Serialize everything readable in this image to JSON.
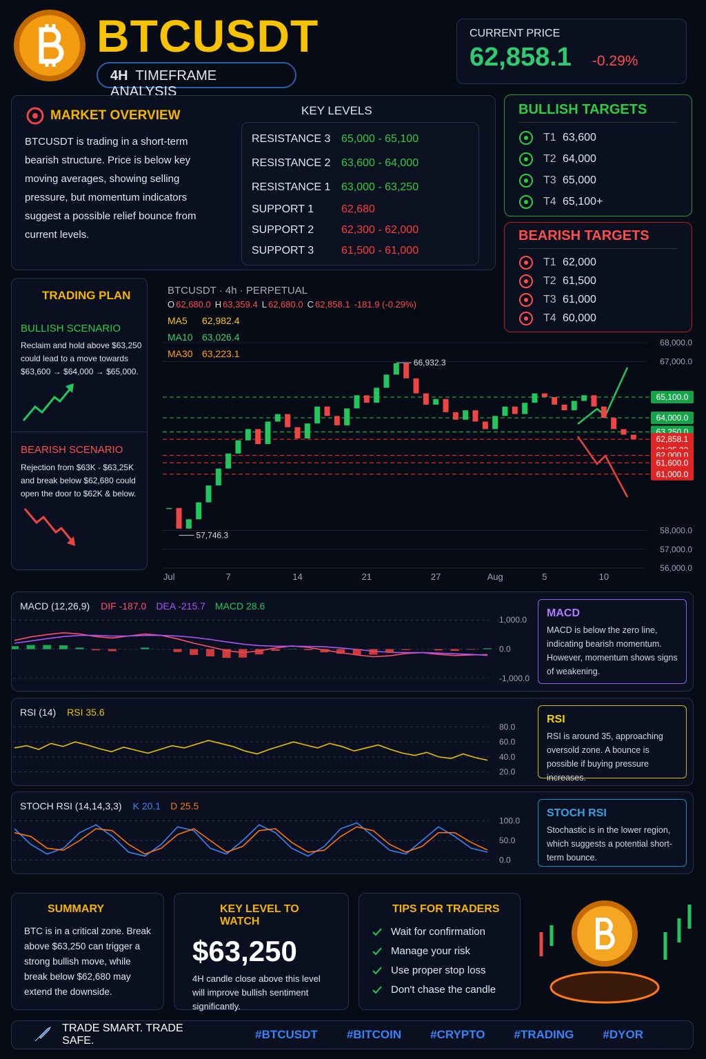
{
  "header": {
    "title": "BTCUSDT",
    "timeframe_num": "4H",
    "timeframe": "TIMEFRAME ANALYSIS"
  },
  "current_price": {
    "label": "CURRENT PRICE",
    "price": "62,858.1",
    "change": "-0.29%"
  },
  "market_overview": {
    "title": "MARKET OVERVIEW",
    "text": "BTCUSDT is trading in a short-term bearish structure. Price is below key moving averages, showing selling pressure, but momentum indicators suggest a possible relief bounce from current levels."
  },
  "key_levels": {
    "title": "KEY LEVELS",
    "rows": [
      [
        "RESISTANCE 3",
        "65,000 - 65,100"
      ],
      [
        "RESISTANCE 2",
        "63,600 - 64,000"
      ],
      [
        "RESISTANCE 1",
        "63,000 - 63,250"
      ],
      [
        "SUPPORT 1",
        "62,680"
      ],
      [
        "SUPPORT 2",
        "62,300 - 62,000"
      ],
      [
        "SUPPORT 3",
        "61,500 - 61,000"
      ]
    ]
  },
  "bullish_targets": {
    "title": "BULLISH TARGETS",
    "items": [
      [
        "T1",
        "63,600"
      ],
      [
        "T2",
        "64,000"
      ],
      [
        "T3",
        "65,000"
      ],
      [
        "T4",
        "65,100+"
      ]
    ]
  },
  "bearish_targets": {
    "title": "BEARISH TARGETS",
    "items": [
      [
        "T1",
        "62,000"
      ],
      [
        "T2",
        "61,500"
      ],
      [
        "T3",
        "61,000"
      ],
      [
        "T4",
        "60,000"
      ]
    ]
  },
  "trading_plan": {
    "title": "TRADING PLAN",
    "bullish": {
      "title": "BULLISH SCENARIO",
      "text": "Reclaim and hold above $63,250 could lead to a move towards $63,600 → $64,000 → $65,000."
    },
    "bearish": {
      "title": "BEARISH SCENARIO",
      "text": "Rejection from $63K - $63,25K and break below $62,680 could open the door to $62K & below."
    }
  },
  "chart_data": {
    "type": "candlestick",
    "symbol": "BTCUSDT · 4h · PERPETUAL",
    "ohlc": [
      [
        "O",
        "62,680.0"
      ],
      [
        "H",
        "63,359.4"
      ],
      [
        "L",
        "62,680.0"
      ],
      [
        "C",
        "62,858.1"
      ]
    ],
    "change": "-181.9 (-0.29%)",
    "ma": [
      [
        "MA5",
        "62,982.4"
      ],
      [
        "MA10",
        "63,026.4"
      ],
      [
        "MA30",
        "63,223.1"
      ]
    ],
    "categories": [
      "Jul",
      null,
      null,
      null,
      null,
      null,
      "7",
      null,
      null,
      null,
      null,
      null,
      null,
      "14",
      null,
      null,
      null,
      null,
      null,
      null,
      "21",
      null,
      null,
      null,
      null,
      null,
      null,
      "27",
      null,
      null,
      null,
      null,
      null,
      "Aug",
      null,
      null,
      null,
      null,
      "5",
      null,
      null,
      null,
      null,
      null,
      "10",
      null,
      null,
      null
    ],
    "close": [
      59200,
      58100,
      58600,
      59500,
      60400,
      61300,
      62100,
      62800,
      63400,
      62600,
      63800,
      64200,
      63500,
      62900,
      63700,
      64600,
      64100,
      63600,
      64500,
      65200,
      64800,
      65600,
      66300,
      66900,
      66100,
      65300,
      64700,
      65000,
      64300,
      63900,
      64400,
      63800,
      63400,
      64100,
      64600,
      64200,
      64800,
      65300,
      65100,
      64700,
      64400,
      64900,
      65200,
      64600,
      64000,
      63400,
      63100,
      62858.1
    ],
    "ylim": [
      56000,
      68000
    ],
    "yticks": [
      {
        "value": 68000,
        "label": "68,000.0"
      },
      {
        "value": 67000,
        "label": "67,000.0"
      },
      {
        "value": 58000,
        "label": "58,000.0"
      },
      {
        "value": 57000,
        "label": "57,000.0"
      },
      {
        "value": 56000,
        "label": "56,000.0"
      }
    ],
    "levels": [
      {
        "value": 65100,
        "label": "65,100.0",
        "color": "#16a34a"
      },
      {
        "value": 64000,
        "label": "64,000.0",
        "color": "#16a34a"
      },
      {
        "value": 63250,
        "label": "63,250.0",
        "color": "#16a34a"
      },
      {
        "value": 62858.1,
        "label": "62,858.1",
        "timer": "01:25.32",
        "color": "#dc2626"
      },
      {
        "value": 62000,
        "label": "62,000.0",
        "color": "#dc2626"
      },
      {
        "value": 61600,
        "label": "61,600.0",
        "color": "#dc2626"
      },
      {
        "value": 61000,
        "label": "61,000.0",
        "color": "#dc2626"
      }
    ],
    "annotations": [
      {
        "value": 66932.3,
        "label": "66,932.3"
      },
      {
        "value": 57746.3,
        "label": "57,746.3"
      }
    ]
  },
  "macd": {
    "title": "MACD (12,26,9)",
    "ylim": [
      -1100,
      1100
    ],
    "yticks": [
      {
        "value": 1000,
        "label": "1,000.0"
      },
      {
        "value": 0,
        "label": "0.0"
      },
      {
        "value": -1000,
        "label": "-1,000.0"
      }
    ],
    "series": [
      {
        "name": "DIF",
        "type": "line",
        "color": "#ff4d6d",
        "last_label": "-187.0",
        "values": [
          300,
          420,
          500,
          560,
          520,
          430,
          380,
          450,
          520,
          470,
          350,
          200,
          80,
          -50,
          -120,
          -60,
          40,
          110,
          60,
          -30,
          -120,
          -200,
          -260,
          -230,
          -150,
          -120,
          -180,
          -220,
          -200,
          -187
        ]
      },
      {
        "name": "DEA",
        "type": "line",
        "color": "#a855f7",
        "last_label": "-215.7",
        "values": [
          200,
          280,
          360,
          430,
          470,
          470,
          450,
          450,
          470,
          470,
          450,
          400,
          330,
          250,
          170,
          120,
          100,
          100,
          95,
          80,
          40,
          -10,
          -70,
          -110,
          -120,
          -120,
          -135,
          -160,
          -180,
          -215.7
        ]
      },
      {
        "name": "MACD",
        "type": "bar",
        "color": "#22c55e",
        "neg_color": "#ef4444",
        "last_label": "28.6",
        "values": [
          100,
          140,
          140,
          130,
          50,
          -40,
          -70,
          0,
          50,
          0,
          -100,
          -200,
          -250,
          -300,
          -290,
          -180,
          -60,
          10,
          -35,
          -110,
          -160,
          -190,
          -190,
          -120,
          -30,
          0,
          -45,
          -60,
          -20,
          28.6
        ]
      }
    ],
    "note": {
      "title": "MACD",
      "text": "MACD is below the zero line, indicating bearish momentum. However, momentum shows signs of weakening."
    }
  },
  "rsi": {
    "title": "RSI (14)",
    "ylim": [
      15,
      85
    ],
    "yticks": [
      {
        "value": 80,
        "label": "80.0"
      },
      {
        "value": 60,
        "label": "60.0"
      },
      {
        "value": 40,
        "label": "40.0"
      },
      {
        "value": 20,
        "label": "20.0"
      }
    ],
    "series": [
      {
        "name": "RSI",
        "type": "line",
        "color": "#e6c200",
        "last_label": "35.6",
        "values": [
          52,
          55,
          50,
          58,
          54,
          60,
          56,
          51,
          47,
          53,
          49,
          45,
          50,
          55,
          52,
          57,
          62,
          58,
          54,
          48,
          44,
          50,
          55,
          60,
          56,
          52,
          58,
          54,
          48,
          52,
          56,
          50,
          45,
          42,
          46,
          40,
          38,
          44,
          39,
          35.6
        ]
      }
    ],
    "note": {
      "title": "RSI",
      "text": "RSI is around 35, approaching oversold zone. A bounce is possible if buying pressure increases."
    }
  },
  "stoch": {
    "title": "STOCH RSI (14,14,3,3)",
    "ylim": [
      -10,
      110
    ],
    "yticks": [
      {
        "value": 100,
        "label": "100.0"
      },
      {
        "value": 50,
        "label": "50.0"
      },
      {
        "value": 0,
        "label": "0.0"
      }
    ],
    "series": [
      {
        "name": "K",
        "type": "line",
        "color": "#3b82f6",
        "last_label": "20.1",
        "values": [
          80,
          40,
          15,
          30,
          70,
          90,
          60,
          20,
          10,
          40,
          85,
          75,
          30,
          15,
          50,
          90,
          70,
          30,
          10,
          35,
          80,
          95,
          60,
          25,
          15,
          50,
          85,
          60,
          30,
          20.1
        ]
      },
      {
        "name": "D",
        "type": "line",
        "color": "#f97316",
        "last_label": "25.5",
        "values": [
          70,
          60,
          30,
          25,
          50,
          80,
          75,
          40,
          15,
          30,
          65,
          80,
          50,
          20,
          35,
          75,
          80,
          45,
          20,
          25,
          60,
          85,
          75,
          40,
          20,
          35,
          70,
          70,
          45,
          25.5
        ]
      }
    ],
    "note": {
      "title": "STOCH RSI",
      "text": "Stochastic is in the lower region, which suggests a potential short-term bounce."
    }
  },
  "summary": {
    "title": "SUMMARY",
    "text": "BTC is in a critical zone. Break above $63,250 can trigger a strong bullish move, while break below $62,680 may extend the downside."
  },
  "key_level_watch": {
    "title": "KEY LEVEL TO WATCH",
    "value": "$63,250",
    "text": "4H candle close above this level will improve bullish sentiment significantly."
  },
  "tips": {
    "title": "TIPS FOR TRADERS",
    "items": [
      "Wait for confirmation",
      "Manage your risk",
      "Use proper stop loss",
      "Don't chase the candle"
    ]
  },
  "footer": {
    "slogan": "TRADE SMART. TRADE SAFE.",
    "tags": [
      "#BTCUSDT",
      "#BITCOIN",
      "#CRYPTO",
      "#TRADING",
      "#DYOR"
    ]
  }
}
